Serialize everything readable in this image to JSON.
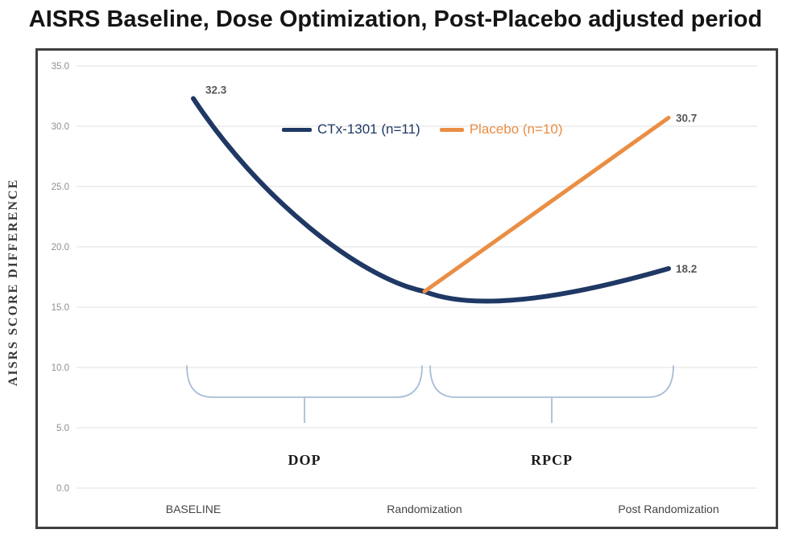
{
  "chart_data": {
    "type": "line",
    "title": "AISRS Baseline, Dose Optimization, Post-Placebo adjusted period",
    "ylabel": "AISRS SCORE DIFFERENCE",
    "xlabel": "",
    "categories": [
      "BASELINE",
      "Randomization",
      "Post Randomization"
    ],
    "y_tick_labels": [
      "35.0",
      "30.0",
      "25.0",
      "20.0",
      "15.0",
      "10.0",
      "5.0",
      "0.0"
    ],
    "ylim": [
      0,
      35
    ],
    "grid": true,
    "legend_position": "top-center-inside",
    "series": [
      {
        "name": "CTx-1301 (n=11)",
        "color": "#1f3864",
        "smooth": true,
        "points": [
          {
            "category": "BASELINE",
            "value": 32.3,
            "label": "32.3"
          },
          {
            "category": "Randomization",
            "value": 16.3,
            "label": ""
          },
          {
            "category": "Post Randomization",
            "value": 18.2,
            "label": "18.2"
          }
        ]
      },
      {
        "name": "Placebo (n=10)",
        "color": "#ea8e44",
        "smooth": false,
        "points": [
          {
            "category": "Randomization",
            "value": 16.3,
            "label": ""
          },
          {
            "category": "Post Randomization",
            "value": 30.7,
            "label": "30.7"
          }
        ]
      }
    ],
    "annotations": [
      {
        "label": "DOP",
        "from": "BASELINE",
        "to": "Randomization"
      },
      {
        "label": "RPCP",
        "from": "Randomization",
        "to": "Post Randomization"
      }
    ]
  },
  "colors": {
    "grid": "#ececec",
    "tick_text": "#8f8f8f",
    "axis_text": "#454545",
    "data_label_text": "#575757",
    "brace": "#a9bdd6",
    "annotation_text": "#1a1a1a",
    "border": "#3f3f3f"
  }
}
